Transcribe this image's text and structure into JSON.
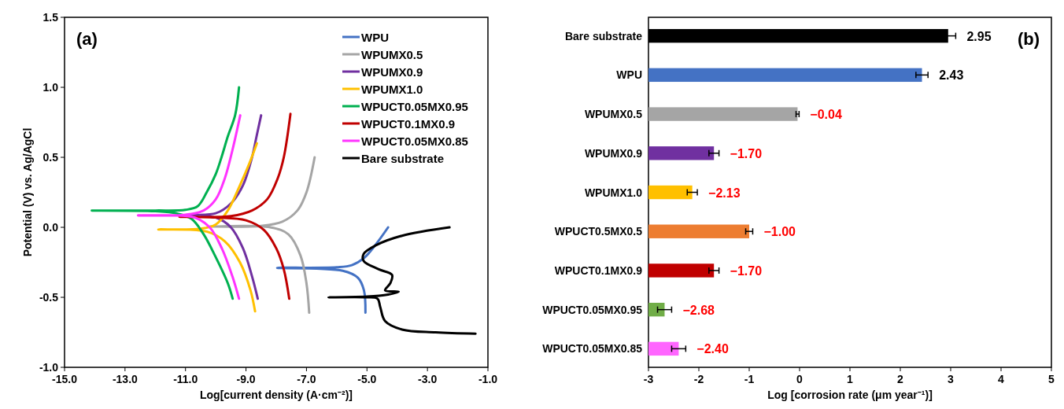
{
  "chart_data": [
    {
      "type": "line",
      "xlabel": "Log[current density (A·cm⁻²)]",
      "ylabel": "Potential (V) vs. Ag/AgCl",
      "annotations": [
        "(a)"
      ],
      "legend": "top right",
      "grid": false,
      "xlim": [
        -15,
        -1
      ],
      "xticks": [
        {
          "value": -15,
          "label": "-15.0"
        },
        {
          "value": -13,
          "label": "-13.0"
        },
        {
          "value": -11,
          "label": "-11.0"
        },
        {
          "value": -9,
          "label": "-9.0"
        },
        {
          "value": -7,
          "label": "-7.0"
        },
        {
          "value": -5,
          "label": "-5.0"
        },
        {
          "value": -3,
          "label": "-3.0"
        },
        {
          "value": -1,
          "label": "-1.0"
        }
      ],
      "ylim": [
        -1,
        1.5
      ],
      "yticks": [
        {
          "value": -1,
          "label": "-1.0"
        },
        {
          "value": -0.5,
          "label": "-0.5"
        },
        {
          "value": 0,
          "label": "0.0"
        },
        {
          "value": 0.5,
          "label": "0.5"
        },
        {
          "value": 1,
          "label": "1.0"
        },
        {
          "value": 1.5,
          "label": "1.5"
        }
      ],
      "series": [
        {
          "name": "WPU",
          "color": "#4472c4",
          "x": [
            -5.05,
            -5.1,
            -5.3,
            -5.8,
            -7.97,
            -6,
            -5.5,
            -5.1,
            -4.7,
            -4.3
          ],
          "values": [
            -0.61,
            -0.45,
            -0.36,
            -0.31,
            -0.29,
            -0.285,
            -0.27,
            -0.22,
            -0.12,
            0.0
          ]
        },
        {
          "name": "WPUMX0.5",
          "color": "#a5a5a5",
          "x": [
            -6.91,
            -7.0,
            -7.2,
            -7.6,
            -8.2,
            -10.2,
            -8.5,
            -7.8,
            -7.3,
            -7.0,
            -6.73
          ],
          "values": [
            -0.61,
            -0.4,
            -0.2,
            -0.05,
            0.0,
            0.005,
            0.01,
            0.04,
            0.12,
            0.25,
            0.5
          ]
        },
        {
          "name": "WPUMX0.9",
          "color": "#7030a0",
          "x": [
            -8.61,
            -8.8,
            -9.1,
            -9.5,
            -10,
            -10.9,
            -10,
            -9.5,
            -9.1,
            -8.8,
            -8.65,
            -8.5
          ],
          "values": [
            -0.51,
            -0.35,
            -0.15,
            0.0,
            0.07,
            0.085,
            0.1,
            0.17,
            0.3,
            0.5,
            0.65,
            0.8
          ]
        },
        {
          "name": "WPUMX1.0",
          "color": "#ffc000",
          "x": [
            -8.7,
            -8.85,
            -9.2,
            -9.7,
            -10.3,
            -11.9,
            -10.5,
            -10,
            -9.6,
            -9.2,
            -8.9,
            -8.64
          ],
          "values": [
            -0.6,
            -0.45,
            -0.25,
            -0.1,
            -0.03,
            -0.015,
            -0.01,
            0.02,
            0.12,
            0.3,
            0.45,
            0.6
          ]
        },
        {
          "name": "WPUCT0.05MX0.95",
          "color": "#00b050",
          "x": [
            -9.44,
            -9.6,
            -10.03,
            -10.4,
            -10.8,
            -11.3,
            -12,
            -14.1,
            -12,
            -11,
            -10.6,
            -10.3,
            -10.0,
            -9.81,
            -9.6,
            -9.36,
            -9.23
          ],
          "values": [
            -0.51,
            -0.4,
            -0.2,
            -0.05,
            0.06,
            0.1,
            0.115,
            0.12,
            0.12,
            0.125,
            0.15,
            0.25,
            0.38,
            0.5,
            0.65,
            0.8,
            1.0
          ]
        },
        {
          "name": "WPUCT0.1MX0.9",
          "color": "#c00000",
          "x": [
            -7.57,
            -7.75,
            -8.0,
            -8.4,
            -9.0,
            -10,
            -11.2,
            -9.5,
            -8.8,
            -8.3,
            -7.95,
            -7.75,
            -7.53
          ],
          "values": [
            -0.51,
            -0.3,
            -0.15,
            -0.02,
            0.05,
            0.07,
            0.075,
            0.08,
            0.12,
            0.2,
            0.35,
            0.5,
            0.81
          ]
        },
        {
          "name": "WPUCT0.05MX0.85",
          "color": "#ff33ff",
          "x": [
            -9.23,
            -9.45,
            -9.8,
            -10.2,
            -10.7,
            -11.5,
            -12.57,
            -11,
            -10.4,
            -10.0,
            -9.7,
            -9.45,
            -9.19
          ],
          "values": [
            -0.51,
            -0.35,
            -0.15,
            0.0,
            0.07,
            0.085,
            0.085,
            0.09,
            0.12,
            0.2,
            0.35,
            0.55,
            0.8
          ]
        },
        {
          "name": "Bare substrate",
          "color": "#000000",
          "x": [
            -1.41,
            -2.73,
            -3.84,
            -4.4,
            -4.56,
            -4.65,
            -5.0,
            -6.27,
            -5.0,
            -4.3,
            -3.95,
            -4.4,
            -4.23,
            -4.17,
            -4.61,
            -5.11,
            -5.11,
            -4.72,
            -3.84,
            -2.27
          ],
          "values": [
            -0.76,
            -0.75,
            -0.73,
            -0.67,
            -0.57,
            -0.51,
            -0.5,
            -0.5,
            -0.495,
            -0.48,
            -0.46,
            -0.45,
            -0.4,
            -0.34,
            -0.3,
            -0.24,
            -0.19,
            -0.13,
            -0.06,
            0.0
          ]
        }
      ]
    },
    {
      "type": "bar",
      "orientation": "horizontal",
      "xlabel": "Log [corrosion rate (μm year⁻¹)]",
      "annotations": [
        "(b)"
      ],
      "grid": false,
      "categories": [
        "Bare substrate",
        "WPU",
        "WPUMX0.5",
        "WPUMX0.9",
        "WPUMX1.0",
        "WPUCT0.5MX0.5",
        "WPUCT0.1MX0.9",
        "WPUCT0.05MX0.95",
        "WPUCT0.05MX0.85"
      ],
      "base": [
        -3,
        -3,
        -3,
        -3,
        -3,
        -3,
        -3,
        -3,
        -3
      ],
      "values": [
        5.95,
        5.43,
        2.96,
        1.3,
        0.87,
        2.0,
        1.3,
        0.32,
        0.6
      ],
      "value_labels": [
        "2.95",
        "2.43",
        "−0.04",
        "−1.70",
        "−2.13",
        "−1.00",
        "−1.70",
        "−2.68",
        "−2.40"
      ],
      "errors": [
        0.15,
        0.12,
        0.03,
        0.1,
        0.1,
        0.07,
        0.1,
        0.14,
        0.14
      ],
      "colors": [
        "#000000",
        "#4472c4",
        "#a5a5a5",
        "#7030a0",
        "#ffc000",
        "#ed7d31",
        "#c00000",
        "#70ad47",
        "#ff66ff"
      ],
      "xlim": [
        -3,
        5
      ],
      "xticks": [
        -3,
        -2,
        -1,
        0,
        1,
        2,
        3,
        4,
        5
      ]
    }
  ]
}
